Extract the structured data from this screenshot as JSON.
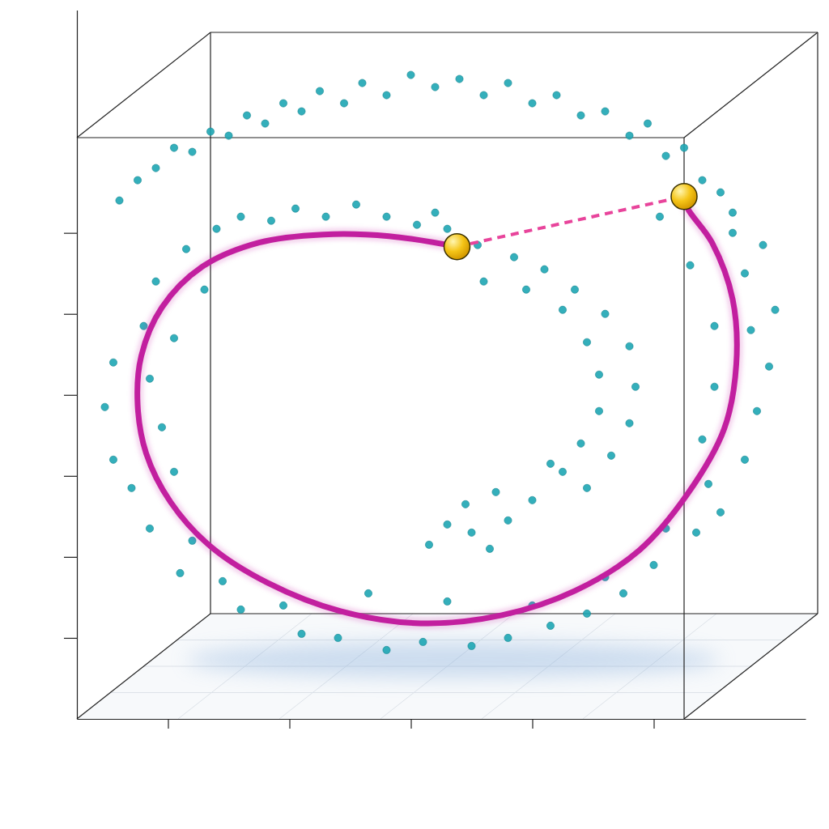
{
  "chart_data": {
    "type": "scatter",
    "tick_labels": false,
    "xlim": [
      2.5,
      62.5
    ],
    "ylim": [
      0,
      87.5
    ],
    "xticks": [
      10,
      20,
      30,
      40,
      50
    ],
    "yticks": [
      10,
      20,
      30,
      40,
      50,
      60
    ],
    "series": [
      {
        "type": "scatter",
        "color": "#1ea6b4",
        "marker": "circle",
        "x": [
          6.0,
          7.5,
          9.0,
          10.5,
          12.0,
          13.5,
          15.0,
          16.5,
          18.0,
          19.5,
          21.0,
          22.5,
          24.5,
          26.0,
          28.0,
          30.0,
          32.0,
          34.0,
          36.0,
          38.0,
          40.0,
          42.0,
          44.0,
          46.0,
          48.0,
          49.5,
          51.0,
          52.5,
          54.0,
          55.5,
          56.5,
          14.0,
          16.0,
          18.5,
          20.5,
          23.0,
          25.5,
          28.0,
          30.5,
          32.0,
          11.5,
          13.0,
          9.0,
          8.0,
          10.5,
          5.5,
          8.5,
          4.8,
          9.5,
          5.5,
          7.0,
          10.5,
          8.5,
          12.0,
          11.0,
          14.5,
          16.0,
          19.5,
          21.0,
          24.0,
          26.5,
          28.0,
          31.0,
          33.0,
          35.0,
          38.0,
          40.0,
          41.5,
          44.5,
          46.0,
          47.5,
          50.0,
          51.0,
          53.5,
          54.5,
          55.5,
          57.5,
          54.0,
          58.5,
          59.5,
          55.0,
          58.0,
          60.0,
          55.0,
          57.5,
          59.0,
          56.5,
          53.0,
          50.5,
          33.0,
          35.5,
          36.0,
          38.5,
          39.5,
          41.0,
          42.5,
          43.5,
          44.5,
          46.0,
          45.5,
          48.0,
          48.5,
          45.5,
          48.0,
          44.0,
          46.5,
          42.5,
          44.5,
          40.0,
          41.5,
          38.0,
          37.0,
          35.0,
          34.5,
          33.0,
          31.5,
          36.5
        ],
        "values": [
          64.0,
          66.5,
          68.0,
          70.5,
          70.0,
          72.5,
          72.0,
          74.5,
          73.5,
          76.0,
          75.0,
          77.5,
          76.0,
          78.5,
          77.0,
          79.5,
          78.0,
          79.0,
          77.0,
          78.5,
          76.0,
          77.0,
          74.5,
          75.0,
          72.0,
          73.5,
          69.5,
          70.5,
          66.5,
          65.0,
          62.5,
          60.5,
          62.0,
          61.5,
          63.0,
          62.0,
          63.5,
          62.0,
          61.0,
          62.5,
          58.0,
          53.0,
          54.0,
          48.5,
          47.0,
          44.0,
          42.0,
          38.5,
          36.0,
          32.0,
          28.5,
          30.5,
          23.5,
          22.0,
          18.0,
          17.0,
          13.5,
          14.0,
          10.5,
          10.0,
          15.5,
          8.5,
          9.5,
          14.5,
          9.0,
          10.0,
          14.0,
          11.5,
          13.0,
          17.5,
          15.5,
          19.0,
          23.5,
          23.0,
          29.0,
          25.5,
          32.0,
          34.5,
          38.0,
          43.5,
          41.0,
          48.0,
          50.5,
          48.5,
          55.0,
          58.5,
          60.0,
          56.0,
          62.0,
          60.5,
          58.5,
          54.0,
          57.0,
          53.0,
          55.5,
          50.5,
          53.0,
          46.5,
          50.0,
          42.5,
          46.0,
          41.0,
          38.0,
          36.5,
          34.0,
          32.5,
          30.5,
          28.5,
          27.0,
          31.5,
          24.5,
          28.0,
          23.0,
          26.5,
          24.0,
          21.5,
          21.0
        ]
      },
      {
        "type": "line",
        "color": "#c21f9f",
        "line_style": "solid",
        "x": [
          33.8,
          28.2,
          22.8,
          17.5,
          12.8,
          9.5,
          7.8,
          7.5,
          8.2,
          10.2,
          13.5,
          18.2,
          24.2,
          30.8,
          37.5,
          43.5,
          48.8,
          52.8,
          55.8,
          56.8,
          56.5,
          54.8,
          52.8,
          52.5
        ],
        "values": [
          58.3,
          59.6,
          59.8,
          58.8,
          55.8,
          50.8,
          44.8,
          38.8,
          32.8,
          26.8,
          21.3,
          16.8,
          13.3,
          11.8,
          12.8,
          15.8,
          20.8,
          27.8,
          35.8,
          43.8,
          51.8,
          58.8,
          63.0,
          64.5
        ]
      },
      {
        "type": "line",
        "color": "#e8449b",
        "line_style": "dashed",
        "x": [
          33.8,
          52.5
        ],
        "values": [
          58.3,
          64.5
        ]
      },
      {
        "type": "scatter",
        "color": "#f5c518",
        "marker": "circle",
        "x": [
          33.8,
          52.5
        ],
        "values": [
          58.3,
          64.5
        ]
      }
    ]
  }
}
